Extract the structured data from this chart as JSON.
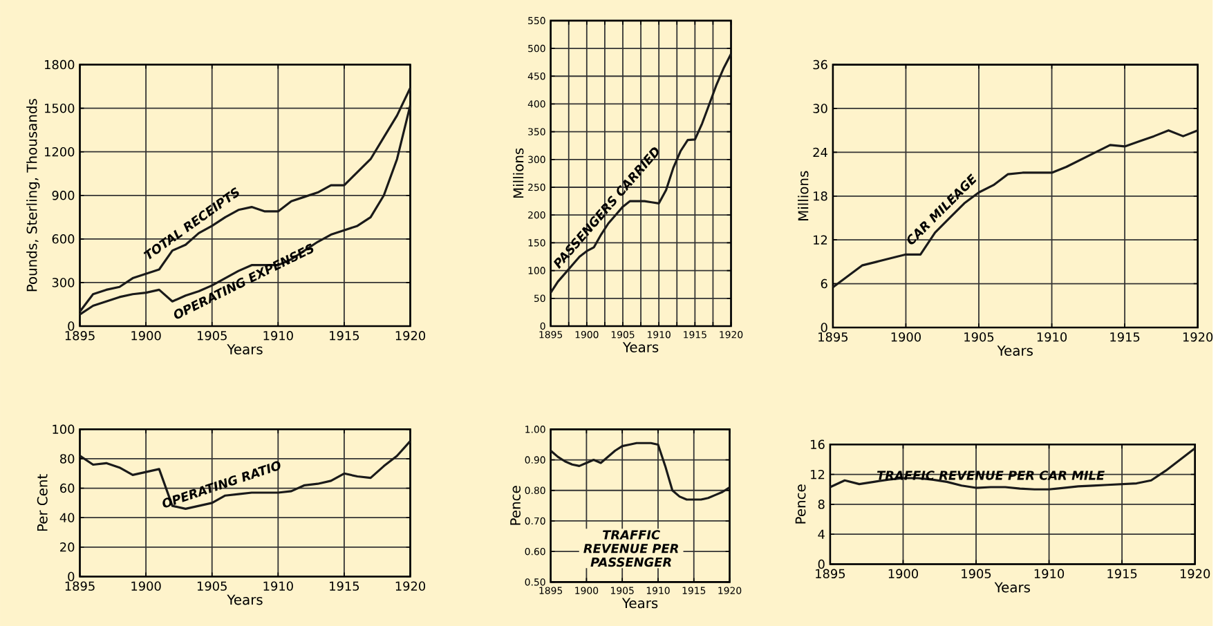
{
  "chart_data": [
    {
      "type": "line",
      "xlabel": "Years",
      "ylabel": "Pounds, Sterling, Thousands",
      "x": [
        1895,
        1896,
        1897,
        1898,
        1899,
        1900,
        1901,
        1902,
        1903,
        1904,
        1905,
        1906,
        1907,
        1908,
        1909,
        1910,
        1911,
        1912,
        1913,
        1914,
        1915,
        1916,
        1917,
        1918,
        1919,
        1920
      ],
      "series": [
        {
          "name": "TOTAL RECEIPTS",
          "color": "#1a1a1a",
          "values": [
            100,
            220,
            250,
            270,
            330,
            360,
            390,
            520,
            560,
            640,
            690,
            750,
            800,
            820,
            790,
            790,
            860,
            890,
            920,
            970,
            970,
            1060,
            1150,
            1300,
            1450,
            1640
          ]
        },
        {
          "name": "OPERATING EXPENSES",
          "color": "#1a1a1a",
          "values": [
            80,
            140,
            170,
            200,
            220,
            230,
            250,
            170,
            210,
            240,
            280,
            330,
            380,
            420,
            420,
            420,
            460,
            520,
            580,
            630,
            660,
            690,
            750,
            900,
            1150,
            1520
          ]
        }
      ],
      "xlim": [
        1895,
        1920
      ],
      "ylim": [
        0,
        1800
      ],
      "xticks": [
        1895,
        1900,
        1905,
        1910,
        1915,
        1920
      ],
      "yticks": [
        0,
        300,
        600,
        900,
        1200,
        1500,
        1800
      ],
      "grid": true,
      "line_style": "solid",
      "marker": "none"
    },
    {
      "type": "line",
      "xlabel": "Years",
      "ylabel": "Millions",
      "x": [
        1895,
        1896,
        1897,
        1898,
        1899,
        1900,
        1901,
        1902,
        1903,
        1904,
        1905,
        1906,
        1907,
        1908,
        1909,
        1910,
        1911,
        1912,
        1913,
        1914,
        1915,
        1916,
        1917,
        1918,
        1919,
        1920
      ],
      "series": [
        {
          "name": "PASSENGERS CARRIED",
          "color": "#1a1a1a",
          "values": [
            60,
            80,
            95,
            110,
            125,
            135,
            142,
            165,
            185,
            200,
            215,
            225,
            225,
            225,
            223,
            221,
            245,
            285,
            315,
            335,
            336,
            365,
            400,
            435,
            465,
            490
          ]
        }
      ],
      "xlim": [
        1895,
        1920
      ],
      "ylim": [
        0,
        550
      ],
      "xticks": [
        1895,
        {
          "value": 1897.5,
          "label": null
        },
        1900,
        {
          "value": 1902.5,
          "label": null
        },
        1905,
        {
          "value": 1907.5,
          "label": null
        },
        1910,
        {
          "value": 1912.5,
          "label": null
        },
        1915,
        {
          "value": 1917.5,
          "label": null
        },
        1920
      ],
      "yticks": [
        0,
        50,
        100,
        150,
        200,
        250,
        300,
        350,
        400,
        450,
        500,
        550
      ],
      "grid": true,
      "line_style": "solid",
      "marker": "none"
    },
    {
      "type": "line",
      "xlabel": "Years",
      "ylabel": "Millions",
      "x": [
        1895,
        1896,
        1897,
        1898,
        1899,
        1900,
        1901,
        1902,
        1903,
        1904,
        1905,
        1906,
        1907,
        1908,
        1909,
        1910,
        1911,
        1912,
        1913,
        1914,
        1915,
        1916,
        1917,
        1918,
        1919,
        1920
      ],
      "series": [
        {
          "name": "CAR MILEAGE",
          "color": "#1a1a1a",
          "values": [
            5.5,
            7,
            8.5,
            9,
            9.5,
            10,
            10,
            13,
            15,
            17,
            18.5,
            19.5,
            21,
            21.2,
            21.2,
            21.2,
            22,
            23,
            24,
            25,
            24.8,
            25.5,
            26.2,
            27,
            26.2,
            27
          ]
        }
      ],
      "xlim": [
        1895,
        1920
      ],
      "ylim": [
        0,
        36
      ],
      "xticks": [
        1895,
        1900,
        1905,
        1910,
        1915,
        1920
      ],
      "yticks": [
        0,
        6,
        12,
        18,
        24,
        30,
        36
      ],
      "grid": true,
      "line_style": "solid",
      "marker": "none"
    },
    {
      "type": "line",
      "xlabel": "Years",
      "ylabel": "Per Cent",
      "x": [
        1895,
        1896,
        1897,
        1898,
        1899,
        1900,
        1901,
        1902,
        1903,
        1904,
        1905,
        1906,
        1907,
        1908,
        1909,
        1910,
        1911,
        1912,
        1913,
        1914,
        1915,
        1916,
        1917,
        1918,
        1919,
        1920
      ],
      "series": [
        {
          "name": "OPERATING RATIO",
          "color": "#1a1a1a",
          "values": [
            82,
            76,
            77,
            74,
            69,
            71,
            73,
            48,
            46,
            48,
            50,
            55,
            56,
            57,
            57,
            57,
            58,
            62,
            63,
            65,
            70,
            68,
            67,
            75,
            82,
            92
          ]
        }
      ],
      "xlim": [
        1895,
        1920
      ],
      "ylim": [
        0,
        100
      ],
      "xticks": [
        1895,
        1900,
        1905,
        1910,
        1915,
        1920
      ],
      "yticks": [
        0,
        20,
        40,
        60,
        80,
        100
      ],
      "grid": true,
      "line_style": "solid",
      "marker": "none"
    },
    {
      "type": "line",
      "xlabel": "Years",
      "ylabel": "Pence",
      "x": [
        1895,
        1896,
        1897,
        1898,
        1899,
        1900,
        1901,
        1902,
        1903,
        1904,
        1905,
        1906,
        1907,
        1908,
        1909,
        1910,
        1911,
        1912,
        1913,
        1914,
        1915,
        1916,
        1917,
        1918,
        1919,
        1920
      ],
      "series": [
        {
          "name": "TRAFFIC REVENUE PER PASSENGER",
          "color": "#1a1a1a",
          "values": [
            0.93,
            0.91,
            0.895,
            0.885,
            0.88,
            0.89,
            0.9,
            0.89,
            0.91,
            0.93,
            0.945,
            0.95,
            0.955,
            0.955,
            0.955,
            0.95,
            0.88,
            0.8,
            0.78,
            0.77,
            0.77,
            0.77,
            0.775,
            0.785,
            0.795,
            0.81
          ]
        }
      ],
      "xlim": [
        1895,
        1920
      ],
      "ylim": [
        0.5,
        1.0
      ],
      "xticks": [
        1895,
        1900,
        1905,
        1910,
        1915,
        1920
      ],
      "yticks": [
        {
          "value": 0.5,
          "label": "0.50"
        },
        {
          "value": 0.6,
          "label": "0.60"
        },
        {
          "value": 0.7,
          "label": "0.70"
        },
        {
          "value": 0.8,
          "label": "0.80"
        },
        {
          "value": 0.9,
          "label": "0.90"
        },
        {
          "value": 1.0,
          "label": "1.00"
        }
      ],
      "grid": true,
      "line_style": "solid",
      "marker": "none"
    },
    {
      "type": "line",
      "xlabel": "Years",
      "ylabel": "Pence",
      "x": [
        1895,
        1896,
        1897,
        1898,
        1899,
        1900,
        1901,
        1902,
        1903,
        1904,
        1905,
        1906,
        1907,
        1908,
        1909,
        1910,
        1911,
        1912,
        1913,
        1914,
        1915,
        1916,
        1917,
        1918,
        1919,
        1920
      ],
      "series": [
        {
          "name": "TRAFFIC REVENUE PER CAR MILE",
          "color": "#1a1a1a",
          "values": [
            10.3,
            11.2,
            10.7,
            11,
            11.3,
            11.5,
            11.5,
            11.3,
            11,
            10.5,
            10.2,
            10.3,
            10.3,
            10.1,
            10,
            10,
            10.2,
            10.4,
            10.5,
            10.6,
            10.7,
            10.8,
            11.2,
            12.5,
            14,
            15.5
          ]
        }
      ],
      "xlim": [
        1895,
        1920
      ],
      "ylim": [
        0,
        16
      ],
      "xticks": [
        1895,
        1900,
        1905,
        1910,
        1915,
        1920
      ],
      "yticks": [
        0,
        4,
        8,
        12,
        16
      ],
      "grid": true,
      "line_style": "solid",
      "marker": "none"
    }
  ]
}
